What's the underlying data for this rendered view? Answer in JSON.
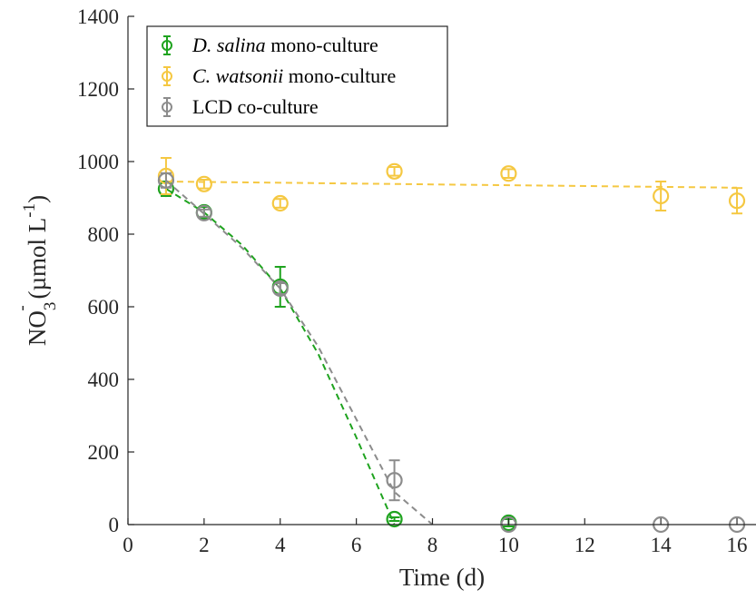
{
  "chart_data": {
    "type": "scatter",
    "xlabel": "Time (d)",
    "ylabel": "NO3- (µmol L-1)",
    "ylabel_parts": {
      "main": "NO",
      "sub": "3",
      "sup": "-",
      "unit": " (µmol L",
      "unit_sup": "-1",
      "close": ")"
    },
    "xlim": [
      0,
      16.5
    ],
    "ylim": [
      0,
      1400
    ],
    "xticks": [
      0,
      2,
      4,
      6,
      8,
      10,
      12,
      14,
      16
    ],
    "yticks": [
      0,
      200,
      400,
      600,
      800,
      1000,
      1200,
      1400
    ],
    "grid": false,
    "legend_position": "top-left",
    "series": [
      {
        "name_italic": "D. salina",
        "name_rest": " mono-culture",
        "color": "#1fa31f",
        "x": [
          1,
          2,
          4,
          7,
          10
        ],
        "y": [
          925,
          860,
          655,
          15,
          5
        ],
        "err": [
          20,
          15,
          55,
          5,
          10
        ],
        "fit": {
          "x": [
            1,
            2,
            3,
            4,
            5,
            6,
            7
          ],
          "y": [
            925,
            860,
            770,
            650,
            470,
            240,
            0
          ]
        }
      },
      {
        "name_italic": "C. watsonii",
        "name_rest": " mono-culture",
        "color": "#f5c842",
        "x": [
          1,
          2,
          4,
          7,
          10,
          14,
          16
        ],
        "y": [
          960,
          938,
          885,
          973,
          967,
          905,
          892
        ],
        "err": [
          50,
          12,
          12,
          12,
          12,
          40,
          35
        ],
        "fit": {
          "x": [
            1,
            16
          ],
          "y": [
            945,
            928
          ]
        }
      },
      {
        "name_italic": "",
        "name_rest": "LCD co-culture",
        "color": "#8c8c8c",
        "x": [
          1,
          2,
          4,
          7,
          10,
          14,
          16
        ],
        "y": [
          948,
          858,
          650,
          122,
          0,
          0,
          0
        ],
        "err": [
          20,
          10,
          15,
          55,
          0,
          0,
          0
        ],
        "fit": {
          "x": [
            1,
            2,
            3,
            4,
            5,
            6,
            7,
            8
          ],
          "y": [
            948,
            856,
            762,
            650,
            490,
            290,
            90,
            0
          ]
        }
      }
    ]
  }
}
